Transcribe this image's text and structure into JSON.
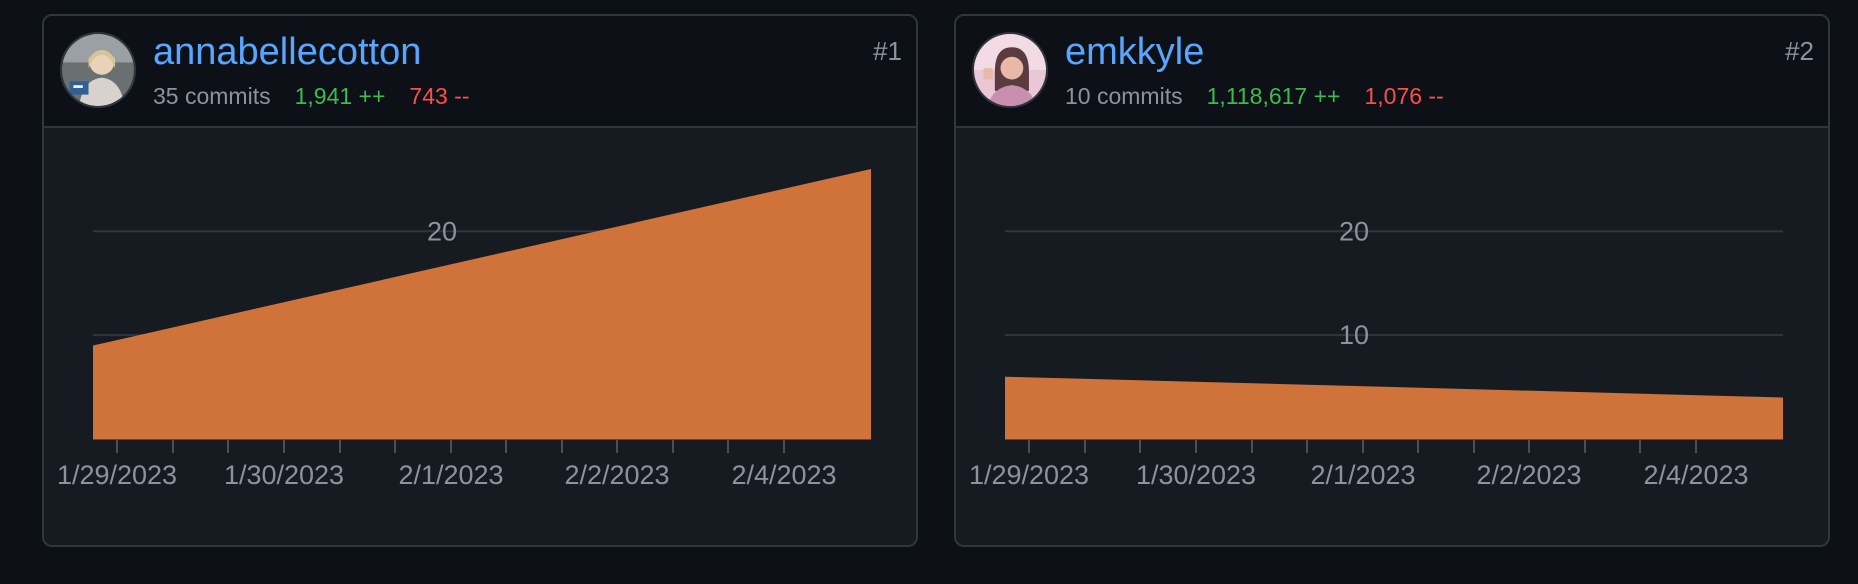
{
  "colors": {
    "area_fill": "#d0733a",
    "username": "#58a6ff",
    "additions": "#3fb950",
    "deletions": "#f85149",
    "muted": "#8b949e"
  },
  "contributors": [
    {
      "rank": "#1",
      "username": "annabellecotton",
      "avatar_icon": "user-avatar-icon",
      "commits": "35 commits",
      "additions": "1,941 ++",
      "deletions": "743 --"
    },
    {
      "rank": "#2",
      "username": "emkkyle",
      "avatar_icon": "user-avatar-icon",
      "commits": "10 commits",
      "additions": "1,118,617 ++",
      "deletions": "1,076 --"
    }
  ],
  "chart_data": [
    {
      "type": "area",
      "x": [
        "1/29/2023",
        "2/5/2023"
      ],
      "y": [
        9,
        26
      ],
      "x_tick_labels": [
        "1/29/2023",
        "1/30/2023",
        "2/1/2023",
        "2/2/2023",
        "2/4/2023"
      ],
      "y_tick_labels": [
        "20"
      ],
      "ylim": [
        0,
        26
      ],
      "grid": true
    },
    {
      "type": "area",
      "x": [
        "1/29/2023",
        "2/5/2023"
      ],
      "y": [
        6,
        4
      ],
      "x_tick_labels": [
        "1/29/2023",
        "1/30/2023",
        "2/1/2023",
        "2/2/2023",
        "2/4/2023"
      ],
      "y_tick_labels": [
        "20",
        "10"
      ],
      "ylim": [
        0,
        26
      ],
      "grid": true
    }
  ]
}
